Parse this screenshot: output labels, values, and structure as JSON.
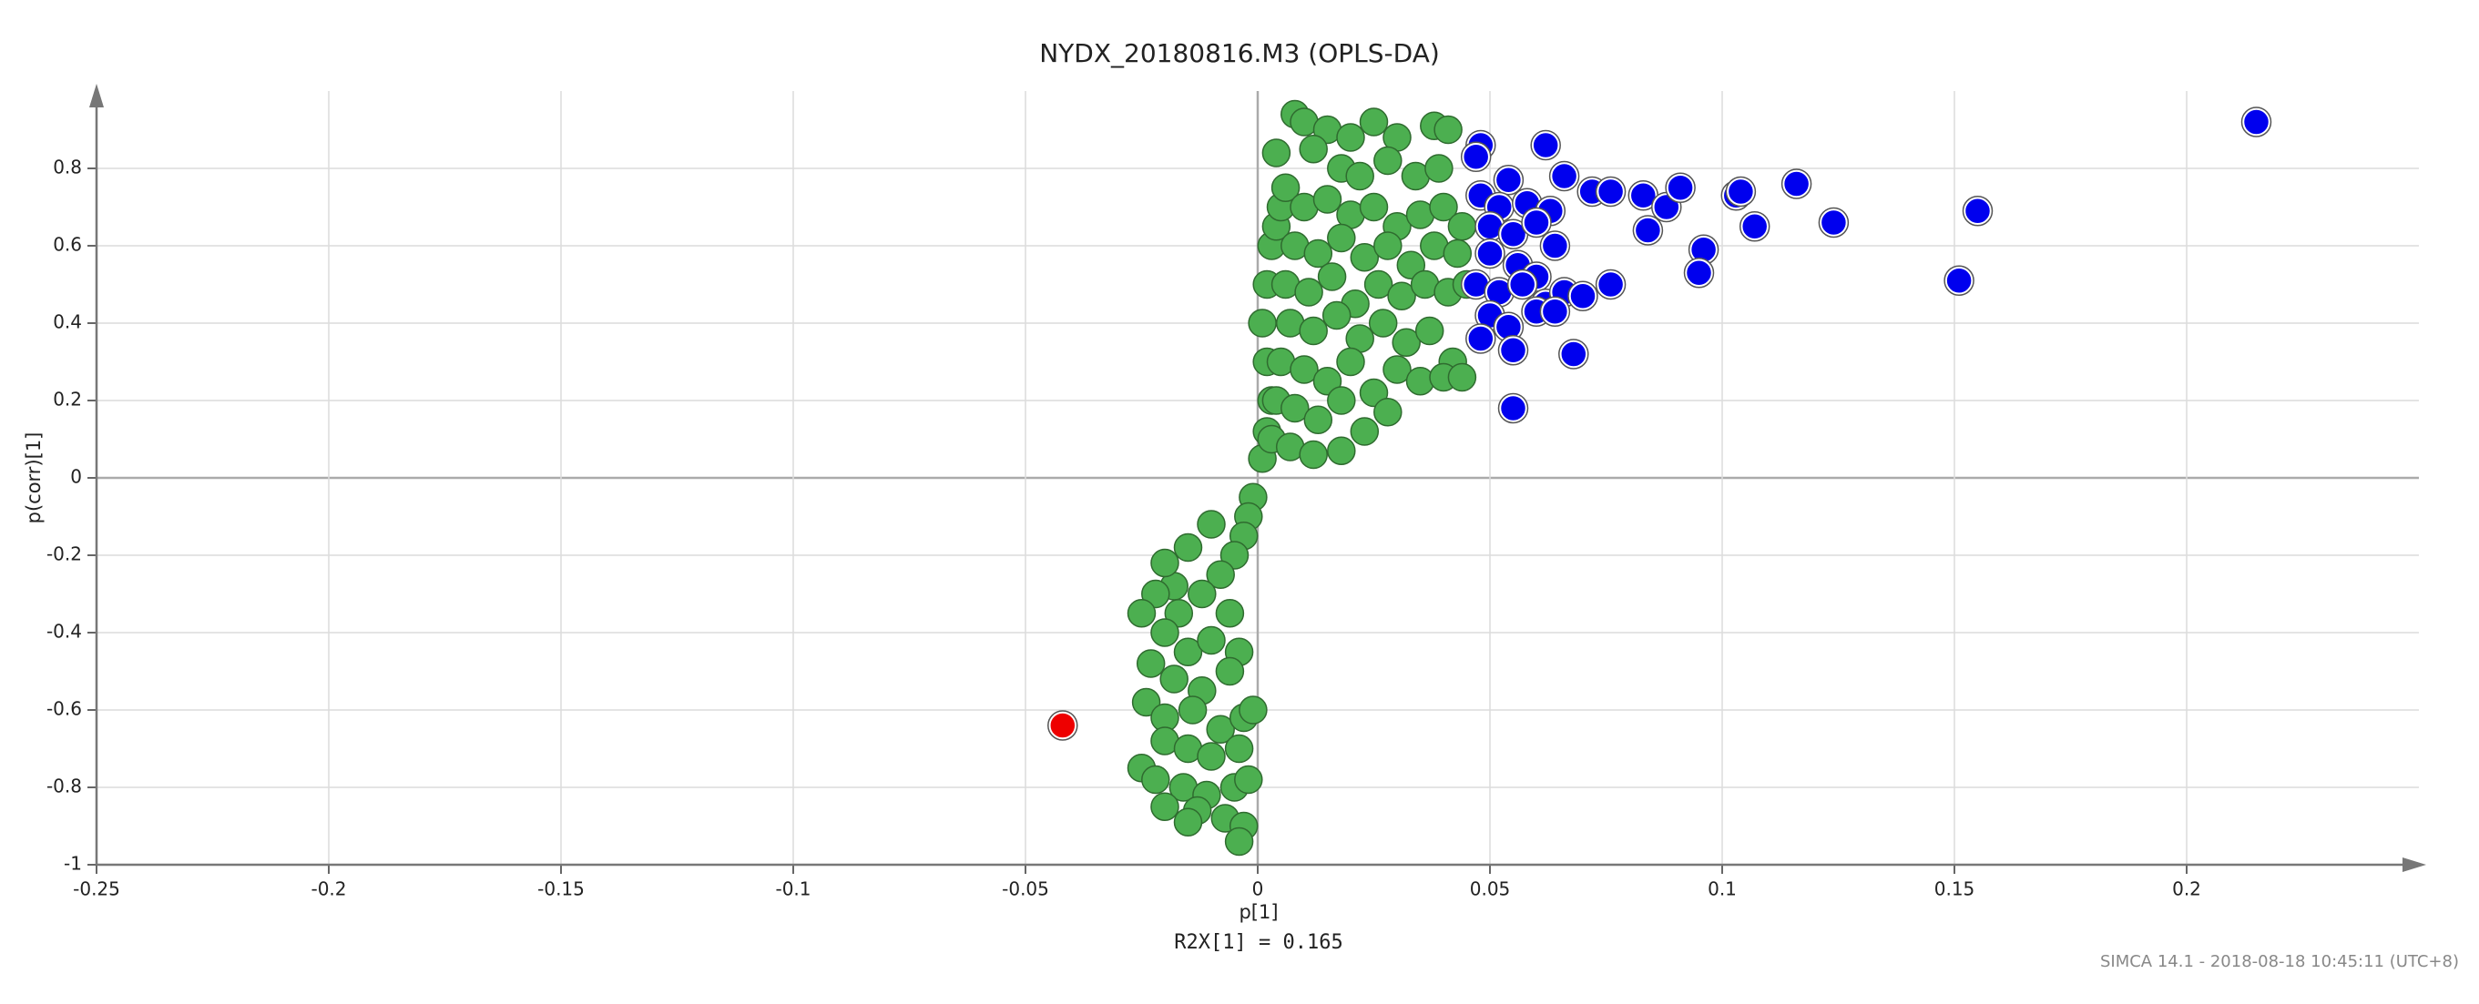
{
  "chart_data": {
    "type": "scatter",
    "title": "NYDX_20180816.M3 (OPLS-DA)",
    "xlabel": "p[1]",
    "ylabel": "p(corr)[1]",
    "annotation": "R2X[1] = 0.165",
    "footer": "SIMCA 14.1 - 2018-08-18 10:45:11 (UTC+8)",
    "xlim": [
      -0.25,
      0.25
    ],
    "ylim": [
      -1,
      1
    ],
    "xticks": [
      -0.25,
      -0.2,
      -0.15,
      -0.1,
      -0.05,
      0,
      0.05,
      0.1,
      0.15,
      0.2
    ],
    "yticks": [
      -1,
      -0.8,
      -0.6,
      -0.4,
      -0.2,
      0,
      0.2,
      0.4,
      0.6,
      0.8
    ],
    "grid": true,
    "series": [
      {
        "color": "#4caf50",
        "x": [
          0.001,
          0.002,
          0.003,
          0.002,
          0.001,
          0.002,
          0.003,
          0.004,
          0.005,
          0.006,
          0.004,
          0.008,
          0.01,
          0.015,
          0.02,
          0.025,
          0.03,
          0.038,
          0.041,
          0.012,
          0.018,
          0.022,
          0.028,
          0.034,
          0.039,
          0.01,
          0.015,
          0.02,
          0.025,
          0.03,
          0.035,
          0.04,
          0.044,
          0.008,
          0.013,
          0.018,
          0.023,
          0.028,
          0.033,
          0.038,
          0.043,
          0.006,
          0.011,
          0.016,
          0.021,
          0.026,
          0.031,
          0.036,
          0.041,
          0.045,
          0.007,
          0.012,
          0.017,
          0.022,
          0.027,
          0.032,
          0.037,
          0.042,
          0.005,
          0.01,
          0.015,
          0.02,
          0.025,
          0.03,
          0.035,
          0.04,
          0.044,
          0.004,
          0.008,
          0.013,
          0.018,
          0.023,
          0.028,
          0.003,
          0.007,
          0.012,
          0.018,
          -0.001,
          -0.002,
          -0.003,
          -0.005,
          -0.01,
          -0.008,
          -0.015,
          -0.018,
          -0.02,
          -0.017,
          -0.012,
          -0.006,
          -0.022,
          -0.025,
          -0.02,
          -0.015,
          -0.01,
          -0.004,
          -0.023,
          -0.018,
          -0.012,
          -0.006,
          -0.024,
          -0.02,
          -0.014,
          -0.008,
          -0.003,
          -0.02,
          -0.015,
          -0.01,
          -0.004,
          -0.025,
          -0.022,
          -0.016,
          -0.011,
          -0.005,
          -0.02,
          -0.013,
          -0.015,
          -0.007,
          -0.003,
          -0.004,
          -0.002,
          -0.001
        ],
        "values": [
          0.05,
          0.12,
          0.2,
          0.3,
          0.4,
          0.5,
          0.6,
          0.65,
          0.7,
          0.75,
          0.84,
          0.94,
          0.92,
          0.9,
          0.88,
          0.92,
          0.88,
          0.91,
          0.9,
          0.85,
          0.8,
          0.78,
          0.82,
          0.78,
          0.8,
          0.7,
          0.72,
          0.68,
          0.7,
          0.65,
          0.68,
          0.7,
          0.65,
          0.6,
          0.58,
          0.62,
          0.57,
          0.6,
          0.55,
          0.6,
          0.58,
          0.5,
          0.48,
          0.52,
          0.45,
          0.5,
          0.47,
          0.5,
          0.48,
          0.5,
          0.4,
          0.38,
          0.42,
          0.36,
          0.4,
          0.35,
          0.38,
          0.3,
          0.3,
          0.28,
          0.25,
          0.3,
          0.22,
          0.28,
          0.25,
          0.26,
          0.26,
          0.2,
          0.18,
          0.15,
          0.2,
          0.12,
          0.17,
          0.1,
          0.08,
          0.06,
          0.07,
          -0.05,
          -0.1,
          -0.15,
          -0.2,
          -0.12,
          -0.25,
          -0.18,
          -0.28,
          -0.22,
          -0.35,
          -0.3,
          -0.35,
          -0.3,
          -0.35,
          -0.4,
          -0.45,
          -0.42,
          -0.45,
          -0.48,
          -0.52,
          -0.55,
          -0.5,
          -0.58,
          -0.62,
          -0.6,
          -0.65,
          -0.62,
          -0.68,
          -0.7,
          -0.72,
          -0.7,
          -0.75,
          -0.78,
          -0.8,
          -0.82,
          -0.8,
          -0.85,
          -0.86,
          -0.89,
          -0.88,
          -0.9,
          -0.94,
          -0.78,
          -0.6
        ]
      },
      {
        "color": "#0000ee",
        "x": [
          0.048,
          0.047,
          0.054,
          0.062,
          0.066,
          0.072,
          0.076,
          0.083,
          0.088,
          0.091,
          0.103,
          0.104,
          0.116,
          0.155,
          0.124,
          0.107,
          0.096,
          0.095,
          0.151,
          0.084,
          0.064,
          0.048,
          0.052,
          0.058,
          0.063,
          0.05,
          0.055,
          0.06,
          0.05,
          0.056,
          0.06,
          0.047,
          0.052,
          0.057,
          0.062,
          0.066,
          0.07,
          0.076,
          0.05,
          0.054,
          0.06,
          0.064,
          0.048,
          0.055,
          0.068,
          0.055,
          0.215
        ],
        "values": [
          0.86,
          0.83,
          0.77,
          0.86,
          0.78,
          0.74,
          0.74,
          0.73,
          0.7,
          0.75,
          0.73,
          0.74,
          0.76,
          0.69,
          0.66,
          0.65,
          0.59,
          0.53,
          0.51,
          0.64,
          0.6,
          0.73,
          0.7,
          0.71,
          0.69,
          0.65,
          0.63,
          0.66,
          0.58,
          0.55,
          0.52,
          0.5,
          0.48,
          0.5,
          0.45,
          0.48,
          0.47,
          0.5,
          0.42,
          0.39,
          0.43,
          0.43,
          0.36,
          0.33,
          0.32,
          0.18,
          0.92
        ]
      },
      {
        "color": "#ee0000",
        "x": [
          -0.042
        ],
        "values": [
          -0.64
        ]
      }
    ]
  }
}
